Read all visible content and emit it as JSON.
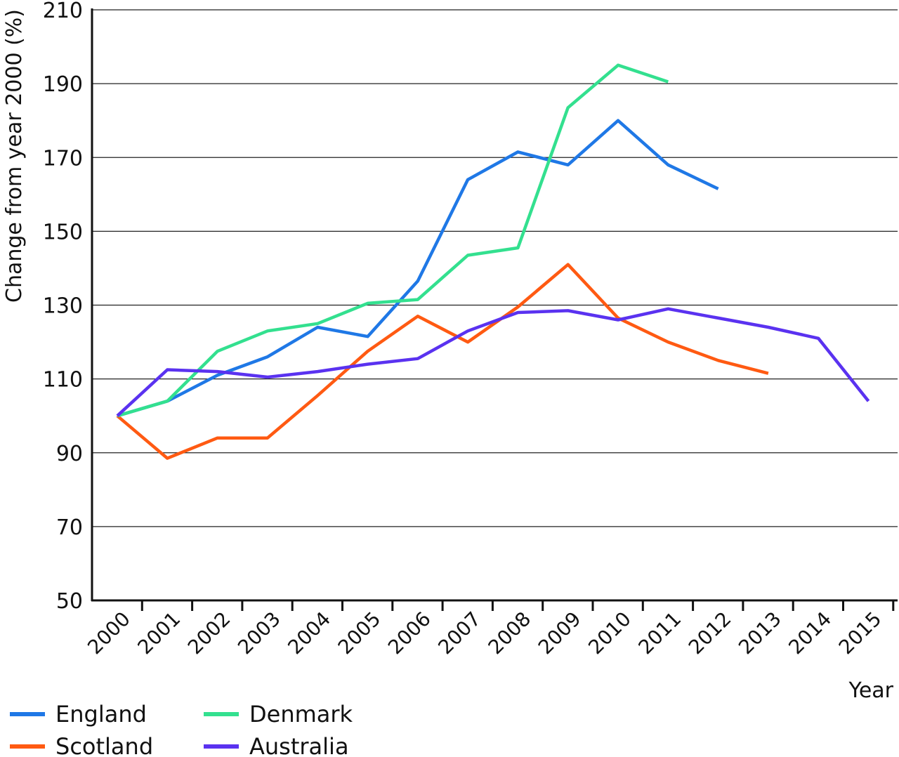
{
  "chart_data": {
    "type": "line",
    "title": "",
    "xlabel": "Year",
    "ylabel": "Change from year 2000 (%)",
    "ylim": [
      50,
      210
    ],
    "yticks": [
      "50",
      "70",
      "90",
      "110",
      "130",
      "150",
      "170",
      "190",
      "210"
    ],
    "categories": [
      "2000",
      "2001",
      "2002",
      "2003",
      "2004",
      "2005",
      "2006",
      "2007",
      "2008",
      "2009",
      "2010",
      "2011",
      "2012",
      "2013",
      "2014",
      "2015"
    ],
    "grid": "horizontal",
    "legend_position": "bottom-left",
    "series": [
      {
        "name": "England",
        "color": "#1f78e6",
        "values": [
          100,
          104,
          111,
          116,
          124,
          121.5,
          136.5,
          164,
          171.5,
          168,
          180,
          168,
          161.5,
          null,
          null,
          null
        ]
      },
      {
        "name": "Scotland",
        "color": "#ff5a12",
        "values": [
          100,
          88.5,
          94,
          94,
          105.5,
          117.5,
          127,
          120,
          129.5,
          141,
          126.5,
          120,
          115,
          111.5,
          null,
          null
        ]
      },
      {
        "name": "Denmark",
        "color": "#33e08f",
        "values": [
          100,
          104,
          117.5,
          123,
          125,
          130.5,
          131.5,
          143.5,
          145.5,
          183.5,
          195,
          190.5,
          null,
          null,
          null,
          null
        ]
      },
      {
        "name": "Australia",
        "color": "#5a32f0",
        "values": [
          100,
          112.5,
          112,
          110.5,
          112,
          114,
          115.5,
          123,
          128,
          128.5,
          126,
          129,
          126.5,
          124,
          121,
          104
        ]
      }
    ]
  }
}
